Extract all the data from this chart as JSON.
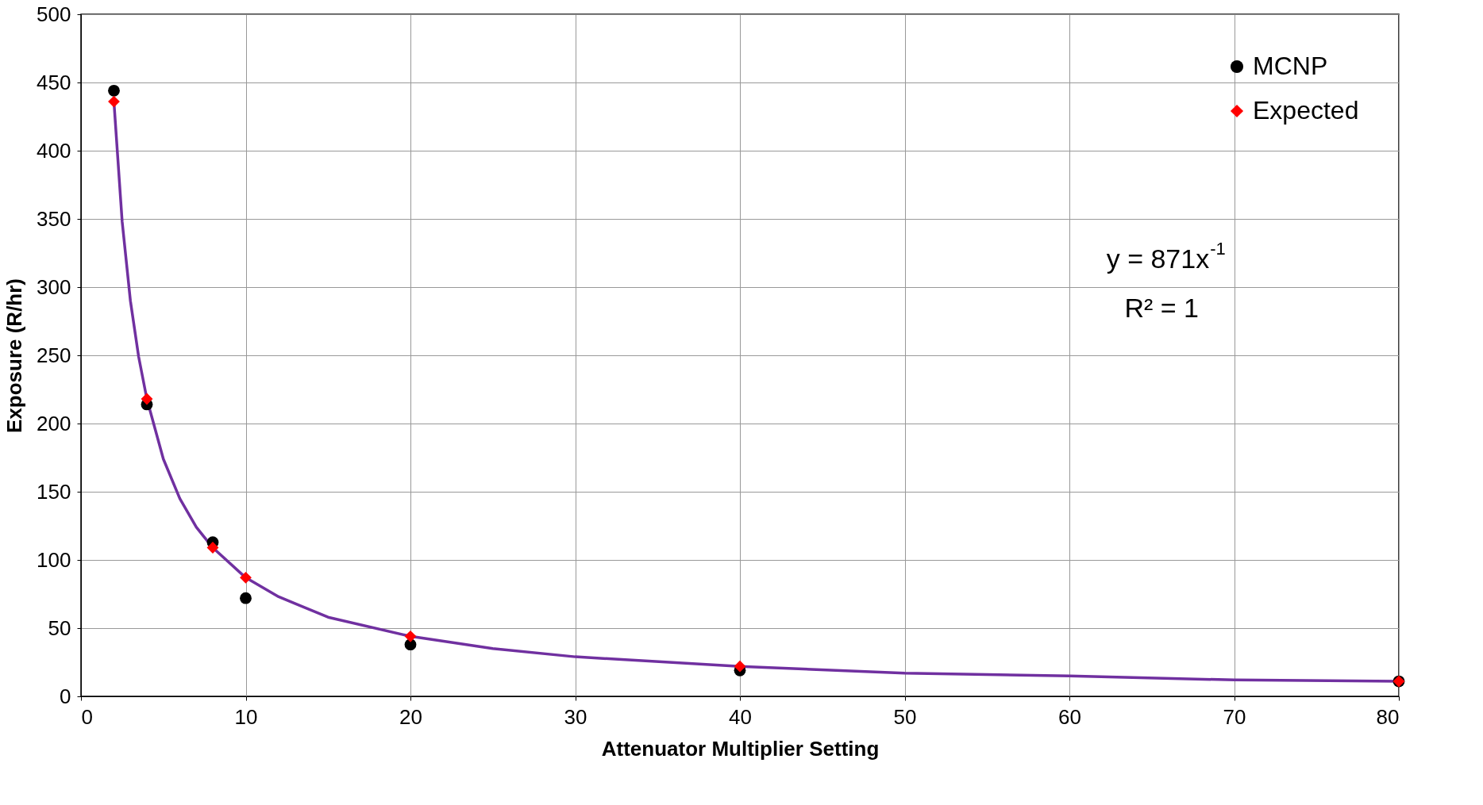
{
  "chart_data": {
    "type": "scatter",
    "xlabel": "Attenuator Multiplier Setting",
    "ylabel": "Exposure (R/hr)",
    "xlim": [
      0,
      80
    ],
    "xticks": [
      0,
      10,
      20,
      30,
      40,
      50,
      60,
      70,
      80
    ],
    "ylim": [
      0,
      500
    ],
    "yticks": [
      0,
      50,
      100,
      150,
      200,
      250,
      300,
      350,
      400,
      450,
      500
    ],
    "grid": true,
    "legend": "top right",
    "series": [
      {
        "type": "line",
        "color": "#7030a0",
        "x": [
          2,
          2.5,
          3,
          3.5,
          4,
          5,
          6,
          7,
          8,
          10,
          12,
          15,
          20,
          25,
          30,
          40,
          50,
          60,
          70,
          80
        ],
        "values": [
          436,
          348,
          290,
          249,
          218,
          174,
          145,
          124,
          109,
          87,
          73,
          58,
          44,
          35,
          29,
          22,
          17,
          15,
          12,
          11
        ]
      },
      {
        "name": "MCNP",
        "marker": "circle",
        "color": "#000000",
        "x": [
          2,
          4,
          8,
          10,
          20,
          40,
          80
        ],
        "values": [
          444,
          214,
          113,
          72,
          38,
          19,
          11
        ]
      },
      {
        "name": "Expected",
        "marker": "diamond",
        "color": "#ff0000",
        "x": [
          2,
          4,
          8,
          10,
          20,
          40,
          80
        ],
        "values": [
          436,
          218,
          109,
          87,
          44,
          22,
          11
        ]
      }
    ],
    "annotations": [
      "y = 871x$^{-1}$",
      "R² = 1"
    ]
  }
}
